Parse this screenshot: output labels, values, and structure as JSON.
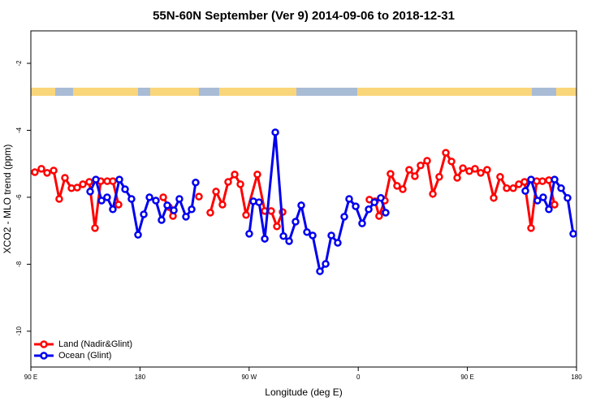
{
  "chart_data": {
    "type": "line",
    "title": "55N-60N September (Ver 9)   2014-09-06 to 2018-12-31",
    "xlabel": "Longitude (deg E)",
    "ylabel": "XCO2 - MLO trend (ppm)",
    "xlim": [
      90,
      540
    ],
    "ylim": [
      -11.07,
      -1.03
    ],
    "xticks": [
      {
        "value": 90,
        "label": "90 E"
      },
      180,
      {
        "value": 270,
        "label": "90 W"
      },
      {
        "value": 360,
        "label": "0"
      },
      {
        "value": 450,
        "label": "90 E"
      },
      {
        "value": 540,
        "label": "180"
      }
    ],
    "yticks": [
      -10,
      -8,
      -6,
      -4,
      -2
    ],
    "legend": "bottom-left",
    "series": [
      {
        "name": "Land (Nadir&Glint)",
        "color": "#ff0000",
        "x": [
          93.3,
          98.7,
          103.4,
          108.8,
          113.4,
          118.1,
          123.5,
          128.2,
          132.9,
          138.2,
          142.9,
          147.6,
          153.0,
          157.6,
          162.3,
          null,
          199.2,
          203.8,
          207.2,
          null,
          228.6,
          null,
          238.0,
          242.7,
          248.0,
          252.7,
          258.1,
          262.8,
          267.5,
          276.8,
          282.9,
          288.2,
          292.9,
          297.6,
          null,
          369.2,
          373.9,
          377.2,
          381.9,
          386.6,
          392.0,
          396.7,
          402.0,
          406.7,
          411.4,
          416.8,
          421.5,
          426.8,
          432.2,
          436.9,
          441.6,
          446.3,
          451.6,
          456.3,
          461.0,
          466.3,
          471.7,
          477.0,
          482.4,
          487.8,
          492.4,
          497.1,
          502.5,
          507.2,
          511.9,
          517.2,
          521.9
        ],
        "values": [
          -5.25,
          -5.15,
          -5.27,
          -5.2,
          -6.05,
          -5.42,
          -5.73,
          -5.71,
          -5.61,
          -5.54,
          -6.92,
          -5.52,
          -5.52,
          -5.52,
          -6.22,
          null,
          -6.0,
          -6.29,
          -6.56,
          null,
          -5.98,
          null,
          -6.46,
          -5.83,
          -6.22,
          -5.54,
          -5.32,
          -5.61,
          -6.53,
          -5.32,
          -6.41,
          -6.41,
          -6.87,
          -6.44,
          null,
          -6.07,
          -6.12,
          -6.56,
          -6.1,
          -5.3,
          -5.66,
          -5.76,
          -5.18,
          -5.37,
          -5.05,
          -4.91,
          -5.9,
          -5.39,
          -4.67,
          -4.93,
          -5.42,
          -5.13,
          -5.22,
          -5.15,
          -5.27,
          -5.18,
          -6.02,
          -5.39,
          -5.73,
          -5.73,
          -5.61,
          -5.54,
          -6.92,
          -5.52,
          -5.52,
          -5.49,
          -6.22
        ]
      },
      {
        "name": "Ocean (Glint)",
        "color": "#0000ee",
        "x": [
          138.9,
          143.6,
          148.3,
          152.9,
          157.6,
          163.0,
          167.7,
          173.0,
          178.4,
          183.1,
          187.8,
          193.1,
          197.8,
          202.5,
          207.9,
          212.5,
          217.9,
          222.6,
          225.9,
          null,
          270.1,
          273.5,
          278.2,
          282.9,
          291.6,
          298.3,
          303.0,
          308.3,
          313.0,
          317.7,
          322.4,
          328.4,
          333.1,
          337.8,
          343.1,
          348.5,
          352.5,
          357.9,
          363.2,
          368.6,
          373.3,
          378.6,
          382.6,
          null,
          497.8,
          502.5,
          507.8,
          512.5,
          517.2,
          521.9,
          527.3,
          532.6,
          537.3
        ],
        "values": [
          -5.83,
          -5.47,
          -6.1,
          -6.0,
          -6.36,
          -5.47,
          -5.76,
          -6.05,
          -7.12,
          -6.51,
          -6.0,
          -6.1,
          -6.68,
          -6.24,
          -6.39,
          -6.05,
          -6.58,
          -6.36,
          -5.56,
          null,
          -7.09,
          -6.12,
          -6.15,
          -7.24,
          -4.06,
          -7.16,
          -7.31,
          -6.73,
          -6.24,
          -7.04,
          -7.14,
          -8.21,
          -7.99,
          -7.14,
          -7.36,
          -6.58,
          -6.05,
          -6.27,
          -6.78,
          -6.36,
          -6.15,
          -6.02,
          -6.46,
          null,
          -5.81,
          -5.47,
          -6.1,
          -6.0,
          -6.36,
          -5.47,
          -5.73,
          -6.02,
          -7.09
        ]
      }
    ]
  }
}
